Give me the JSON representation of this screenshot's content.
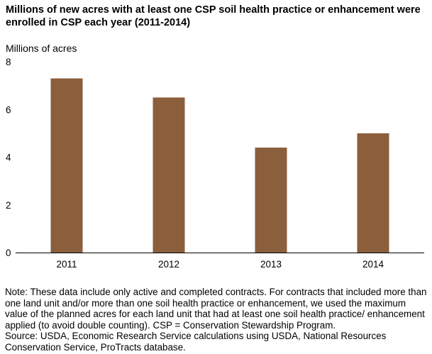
{
  "title": "Millions of new acres with at least one CSP soil health practice or enhancement were enrolled in CSP each year (2011-2014)",
  "chart_data": {
    "type": "bar",
    "categories": [
      "2011",
      "2012",
      "2013",
      "2014"
    ],
    "values": [
      7.3,
      6.5,
      4.4,
      5.0
    ],
    "ylabel": "Millions of acres",
    "xlabel": "",
    "ylim": [
      0,
      8
    ],
    "yticks": [
      0,
      2,
      4,
      6,
      8
    ],
    "bar_color": "#8b5e3c",
    "grid": false
  },
  "notes": {
    "note": "Note: These data include only active and completed contracts. For contracts that included more than one land unit and/or more than one soil health practice or enhancement, we used the maximum value of the planned acres for each land unit that had at least one soil health practice/ enhancement applied (to avoid double counting). CSP = Conservation Stewardship Program.",
    "source": "Source: USDA, Economic Research Service calculations using USDA, National Resources Conservation Service, ProTracts database."
  }
}
